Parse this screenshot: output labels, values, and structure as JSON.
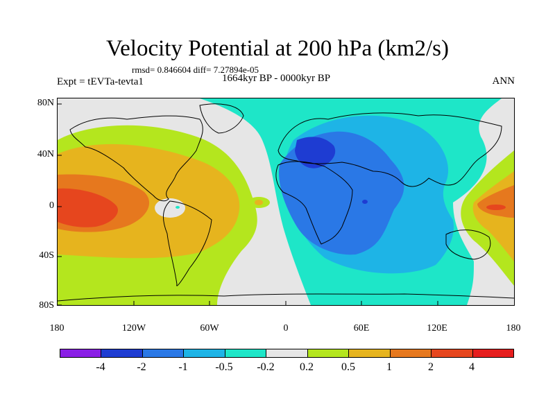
{
  "title": "Velocity Potential at 200 hPa (km2/s)",
  "stats": "rmsd= 0.846604  diff= 7.27894e-05",
  "period": "1664kyr BP - 0000kyr BP",
  "experiment": "Expt = tEVTa-tevta1",
  "season": "ANN",
  "axes": {
    "y_ticks": [
      "80N",
      "40N",
      "0",
      "40S",
      "80S"
    ],
    "x_ticks": [
      "180",
      "120W",
      "60W",
      "0",
      "60E",
      "120E",
      "180"
    ]
  },
  "colorbar": {
    "colors": [
      "#8a1ee6",
      "#1e3cd2",
      "#2a78e6",
      "#1eb4e6",
      "#1ee6c8",
      "#e6e6e6",
      "#b4e61e",
      "#e6b41e",
      "#e6781e",
      "#e6461e",
      "#e61e1e"
    ],
    "labels": [
      "-4",
      "-2",
      "-1",
      "-0.5",
      "-0.2",
      "0.2",
      "0.5",
      "1",
      "2",
      "4"
    ]
  }
}
